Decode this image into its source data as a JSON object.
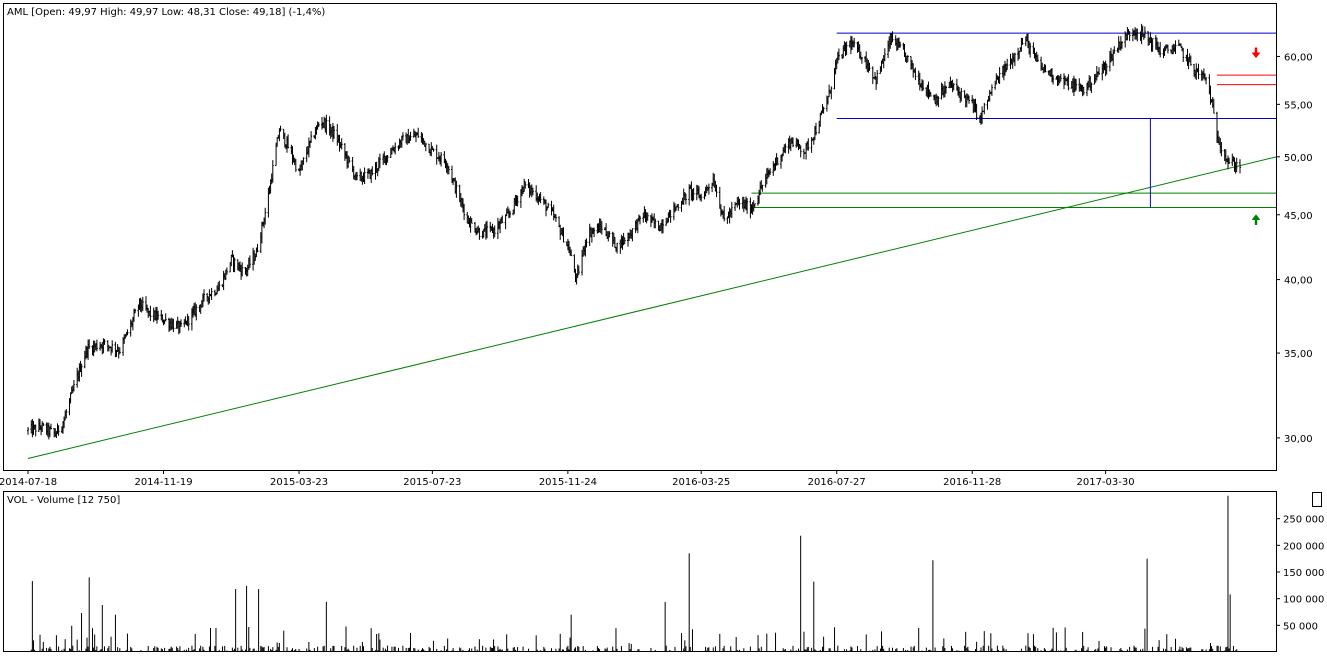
{
  "chart_data": [
    {
      "type": "bar",
      "subtype": "ohlc",
      "title": "AML [Open: 49,97  High: 49,97  Low: 48,31  Close: 49,18] (-1,4%)",
      "price_scale": "log",
      "ylim": [
        28.3,
        66.0
      ],
      "y_ticks": [
        {
          "value": 30,
          "label": "30,00"
        },
        {
          "value": 35,
          "label": "35,00"
        },
        {
          "value": 40,
          "label": "40,00"
        },
        {
          "value": 45,
          "label": "45,00"
        },
        {
          "value": 50,
          "label": "50,00"
        },
        {
          "value": 55,
          "label": "55,00"
        },
        {
          "value": 60,
          "label": "60,00"
        }
      ],
      "x_range": [
        "2014-07-18",
        "2017-07-31"
      ],
      "x_ticks": [
        {
          "date": "2014-07-18",
          "label": "2014-07-18"
        },
        {
          "date": "2014-11-19",
          "label": "2014-11-19"
        },
        {
          "date": "2015-03-23",
          "label": "2015-03-23"
        },
        {
          "date": "2015-07-23",
          "label": "2015-07-23"
        },
        {
          "date": "2015-11-24",
          "label": "2015-11-24"
        },
        {
          "date": "2016-03-25",
          "label": "2016-03-25"
        },
        {
          "date": "2016-07-27",
          "label": "2016-07-27"
        },
        {
          "date": "2016-11-28",
          "label": "2016-11-28"
        },
        {
          "date": "2017-03-30",
          "label": "2017-03-30"
        }
      ],
      "price_path": [
        [
          "2014-07-18",
          30.4
        ],
        [
          "2014-07-30",
          30.6
        ],
        [
          "2014-08-12",
          30.2
        ],
        [
          "2014-08-20",
          31.0
        ],
        [
          "2014-09-01",
          33.5
        ],
        [
          "2014-09-10",
          35.3
        ],
        [
          "2014-09-25",
          35.6
        ],
        [
          "2014-10-10",
          35.2
        ],
        [
          "2014-10-20",
          36.8
        ],
        [
          "2014-10-28",
          38.3
        ],
        [
          "2014-11-06",
          37.6
        ],
        [
          "2014-11-19",
          37.2
        ],
        [
          "2014-12-05",
          36.6
        ],
        [
          "2014-12-15",
          37.5
        ],
        [
          "2014-12-28",
          38.8
        ],
        [
          "2015-01-10",
          39.5
        ],
        [
          "2015-01-20",
          41.5
        ],
        [
          "2015-02-01",
          40.5
        ],
        [
          "2015-02-12",
          42.0
        ],
        [
          "2015-02-22",
          46.0
        ],
        [
          "2015-03-05",
          52.5
        ],
        [
          "2015-03-15",
          50.5
        ],
        [
          "2015-03-23",
          48.5
        ],
        [
          "2015-04-01",
          51.0
        ],
        [
          "2015-04-12",
          53.5
        ],
        [
          "2015-04-25",
          52.0
        ],
        [
          "2015-05-05",
          50.0
        ],
        [
          "2015-05-15",
          48.0
        ],
        [
          "2015-05-28",
          48.5
        ],
        [
          "2015-06-10",
          50.0
        ],
        [
          "2015-06-25",
          51.5
        ],
        [
          "2015-07-10",
          52.0
        ],
        [
          "2015-07-23",
          50.5
        ],
        [
          "2015-08-05",
          49.5
        ],
        [
          "2015-08-16",
          46.5
        ],
        [
          "2015-08-25",
          44.5
        ],
        [
          "2015-09-05",
          43.5
        ],
        [
          "2015-09-18",
          43.8
        ],
        [
          "2015-10-01",
          45.0
        ],
        [
          "2015-10-15",
          47.5
        ],
        [
          "2015-10-28",
          46.5
        ],
        [
          "2015-11-10",
          45.0
        ],
        [
          "2015-11-24",
          42.5
        ],
        [
          "2015-12-02",
          40.0
        ],
        [
          "2015-12-12",
          43.5
        ],
        [
          "2015-12-25",
          44.0
        ],
        [
          "2016-01-08",
          42.5
        ],
        [
          "2016-01-20",
          43.5
        ],
        [
          "2016-02-01",
          45.0
        ],
        [
          "2016-02-15",
          44.0
        ],
        [
          "2016-03-01",
          45.5
        ],
        [
          "2016-03-15",
          47.0
        ],
        [
          "2016-03-25",
          46.5
        ],
        [
          "2016-04-05",
          48.0
        ],
        [
          "2016-04-15",
          44.5
        ],
        [
          "2016-04-28",
          46.0
        ],
        [
          "2016-05-10",
          45.5
        ],
        [
          "2016-05-20",
          47.5
        ],
        [
          "2016-06-01",
          49.5
        ],
        [
          "2016-06-15",
          51.5
        ],
        [
          "2016-06-28",
          50.5
        ],
        [
          "2016-07-10",
          53.0
        ],
        [
          "2016-07-20",
          56.0
        ],
        [
          "2016-07-27",
          59.5
        ],
        [
          "2016-08-08",
          61.5
        ],
        [
          "2016-08-20",
          60.0
        ],
        [
          "2016-09-01",
          57.5
        ],
        [
          "2016-09-15",
          62.0
        ],
        [
          "2016-09-28",
          60.0
        ],
        [
          "2016-10-10",
          57.5
        ],
        [
          "2016-10-25",
          55.5
        ],
        [
          "2016-11-08",
          57.0
        ],
        [
          "2016-11-28",
          55.0
        ],
        [
          "2016-12-05",
          53.5
        ],
        [
          "2016-12-18",
          57.0
        ],
        [
          "2017-01-05",
          60.0
        ],
        [
          "2017-01-15",
          62.0
        ],
        [
          "2017-01-28",
          59.0
        ],
        [
          "2017-02-10",
          58.0
        ],
        [
          "2017-02-25",
          57.0
        ],
        [
          "2017-03-10",
          56.5
        ],
        [
          "2017-03-30",
          59.0
        ],
        [
          "2017-04-12",
          61.5
        ],
        [
          "2017-04-25",
          63.0
        ],
        [
          "2017-05-08",
          62.0
        ],
        [
          "2017-05-20",
          60.5
        ],
        [
          "2017-06-05",
          61.0
        ],
        [
          "2017-06-20",
          58.5
        ],
        [
          "2017-07-01",
          57.5
        ],
        [
          "2017-07-10",
          52.0
        ],
        [
          "2017-07-20",
          49.5
        ],
        [
          "2017-07-31",
          49.18
        ]
      ],
      "trendlines": [
        {
          "color": "#008000",
          "from": [
            "2014-07-18",
            28.9
          ],
          "to": [
            "2017-07-31",
            49.2
          ],
          "extend_to_edge": true
        },
        {
          "color": "#0000cc",
          "from": [
            "2016-07-27",
            62.6
          ],
          "to": [
            "2017-07-31",
            62.6
          ],
          "extend_to_edge": true
        },
        {
          "color": "#0000cc",
          "from": [
            "2016-07-27",
            53.6
          ],
          "to": [
            "2017-07-31",
            53.6
          ],
          "extend_to_edge": true
        },
        {
          "color": "#008000",
          "from": [
            "2016-05-10",
            46.8
          ],
          "to": [
            "2017-07-31",
            46.8
          ],
          "extend_to_edge": true
        },
        {
          "color": "#008000",
          "from": [
            "2016-05-10",
            45.6
          ],
          "to": [
            "2017-07-31",
            45.6
          ],
          "extend_to_edge": true
        },
        {
          "color": "#ff0000",
          "from": [
            "2017-07-10",
            58.0
          ],
          "to": [
            "2017-07-31",
            58.0
          ],
          "extend_to_edge": true
        },
        {
          "color": "#ff0000",
          "from": [
            "2017-07-10",
            57.0
          ],
          "to": [
            "2017-07-31",
            57.0
          ],
          "extend_to_edge": true
        },
        {
          "color": "#0000cc",
          "from": [
            "2017-05-10",
            53.6
          ],
          "to": [
            "2017-05-10",
            45.6
          ],
          "extend_to_edge": false
        }
      ],
      "markers": [
        {
          "type": "arrow-down",
          "color": "#ff0000",
          "date": "2017-07-31",
          "value": 60.4
        },
        {
          "type": "arrow-up",
          "color": "#008000",
          "date": "2017-07-31",
          "value": 44.6
        }
      ]
    },
    {
      "type": "bar",
      "title": "VOL - Volume [12 750]",
      "ylim": [
        0,
        300000
      ],
      "y_ticks": [
        {
          "value": 50000,
          "label": "50 000"
        },
        {
          "value": 100000,
          "label": "100 000"
        },
        {
          "value": 150000,
          "label": "150 000"
        },
        {
          "value": 200000,
          "label": "200 000"
        },
        {
          "value": 250000,
          "label": "250 000"
        }
      ],
      "spikes": [
        [
          "2014-07-22",
          133000
        ],
        [
          "2014-09-05",
          73000
        ],
        [
          "2014-09-12",
          140000
        ],
        [
          "2014-09-24",
          88000
        ],
        [
          "2014-10-06",
          70000
        ],
        [
          "2015-01-24",
          118000
        ],
        [
          "2015-02-03",
          124000
        ],
        [
          "2015-02-14",
          118000
        ],
        [
          "2015-04-17",
          94000
        ],
        [
          "2015-11-27",
          70000
        ],
        [
          "2016-02-21",
          94000
        ],
        [
          "2016-03-14",
          185000
        ],
        [
          "2016-06-24",
          218000
        ],
        [
          "2016-07-06",
          132000
        ],
        [
          "2016-10-23",
          172000
        ],
        [
          "2017-05-07",
          175000
        ],
        [
          "2017-07-20",
          293000
        ],
        [
          "2017-07-22",
          108000
        ]
      ]
    }
  ]
}
